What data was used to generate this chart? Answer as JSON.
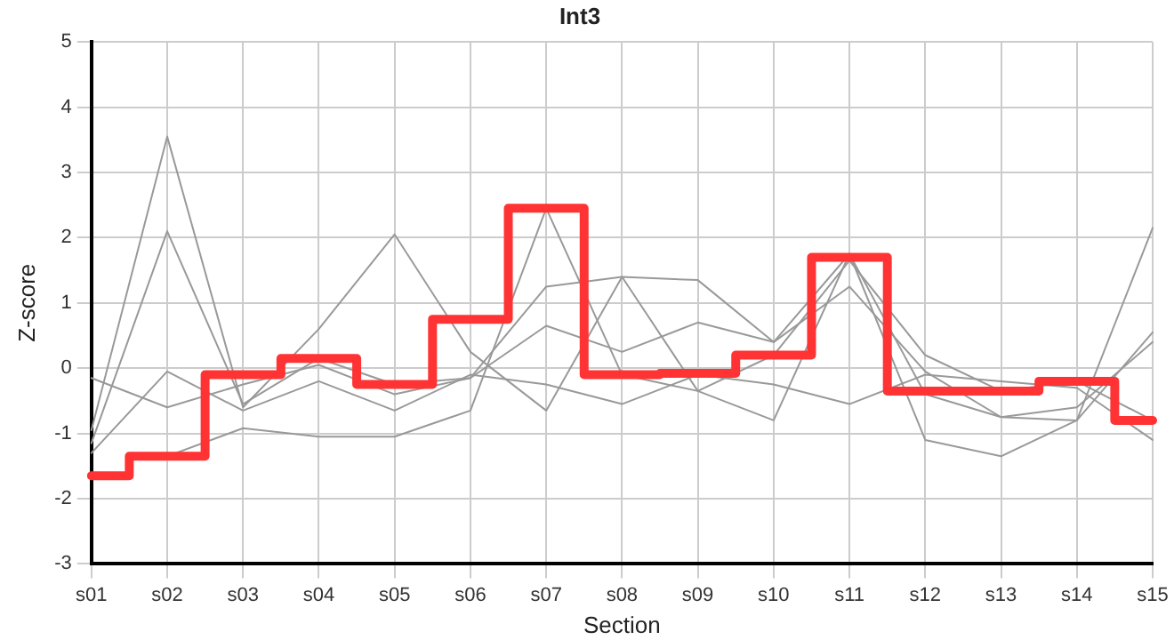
{
  "chart_data": {
    "type": "line",
    "title": "Int3",
    "xlabel": "Section",
    "ylabel": "Z-score",
    "categories": [
      "s01",
      "s02",
      "s03",
      "s04",
      "s05",
      "s06",
      "s07",
      "s08",
      "s09",
      "s10",
      "s11",
      "s12",
      "s13",
      "s14",
      "s15"
    ],
    "ylim": [
      -3,
      5
    ],
    "yticks": [
      -3,
      -2,
      -1,
      0,
      1,
      2,
      3,
      4,
      5
    ],
    "grid": true,
    "legend": false,
    "marker": "none",
    "series": [
      {
        "color": "#999999",
        "values": [
          -0.95,
          3.55,
          -0.6,
          0.6,
          2.05,
          0.25,
          -0.65,
          1.4,
          -0.35,
          -0.8,
          1.75,
          -1.1,
          -1.35,
          -0.8,
          2.15
        ]
      },
      {
        "color": "#999999",
        "values": [
          -1.15,
          2.1,
          -0.55,
          0.15,
          -0.25,
          -0.15,
          1.25,
          1.4,
          1.35,
          0.4,
          1.75,
          -0.4,
          -0.75,
          -0.8,
          0.55
        ]
      },
      {
        "color": "#999999",
        "values": [
          -0.15,
          -0.6,
          -0.25,
          0.05,
          -0.4,
          -0.15,
          0.65,
          0.25,
          0.7,
          0.4,
          1.25,
          -0.05,
          -0.75,
          -0.6,
          0.4
        ]
      },
      {
        "color": "#999999",
        "values": [
          -1.3,
          -0.05,
          -0.65,
          -0.2,
          -0.65,
          -0.1,
          -0.25,
          -0.55,
          -0.1,
          -0.25,
          -0.55,
          -0.1,
          -0.2,
          -0.3,
          -1.1
        ]
      },
      {
        "color": "#999999",
        "values": [
          null,
          -1.35,
          -0.92,
          -1.05,
          -1.05,
          -0.65,
          2.45,
          -0.1,
          -0.35,
          0.2,
          1.65,
          0.2,
          -0.35,
          -0.2,
          -0.8
        ]
      },
      {
        "type": "step",
        "color": "#ff3333",
        "values": [
          -1.65,
          -1.35,
          -0.1,
          0.15,
          -0.25,
          0.75,
          2.45,
          -0.1,
          -0.08,
          0.2,
          1.7,
          -0.35,
          -0.35,
          -0.2,
          -0.8
        ]
      }
    ]
  }
}
